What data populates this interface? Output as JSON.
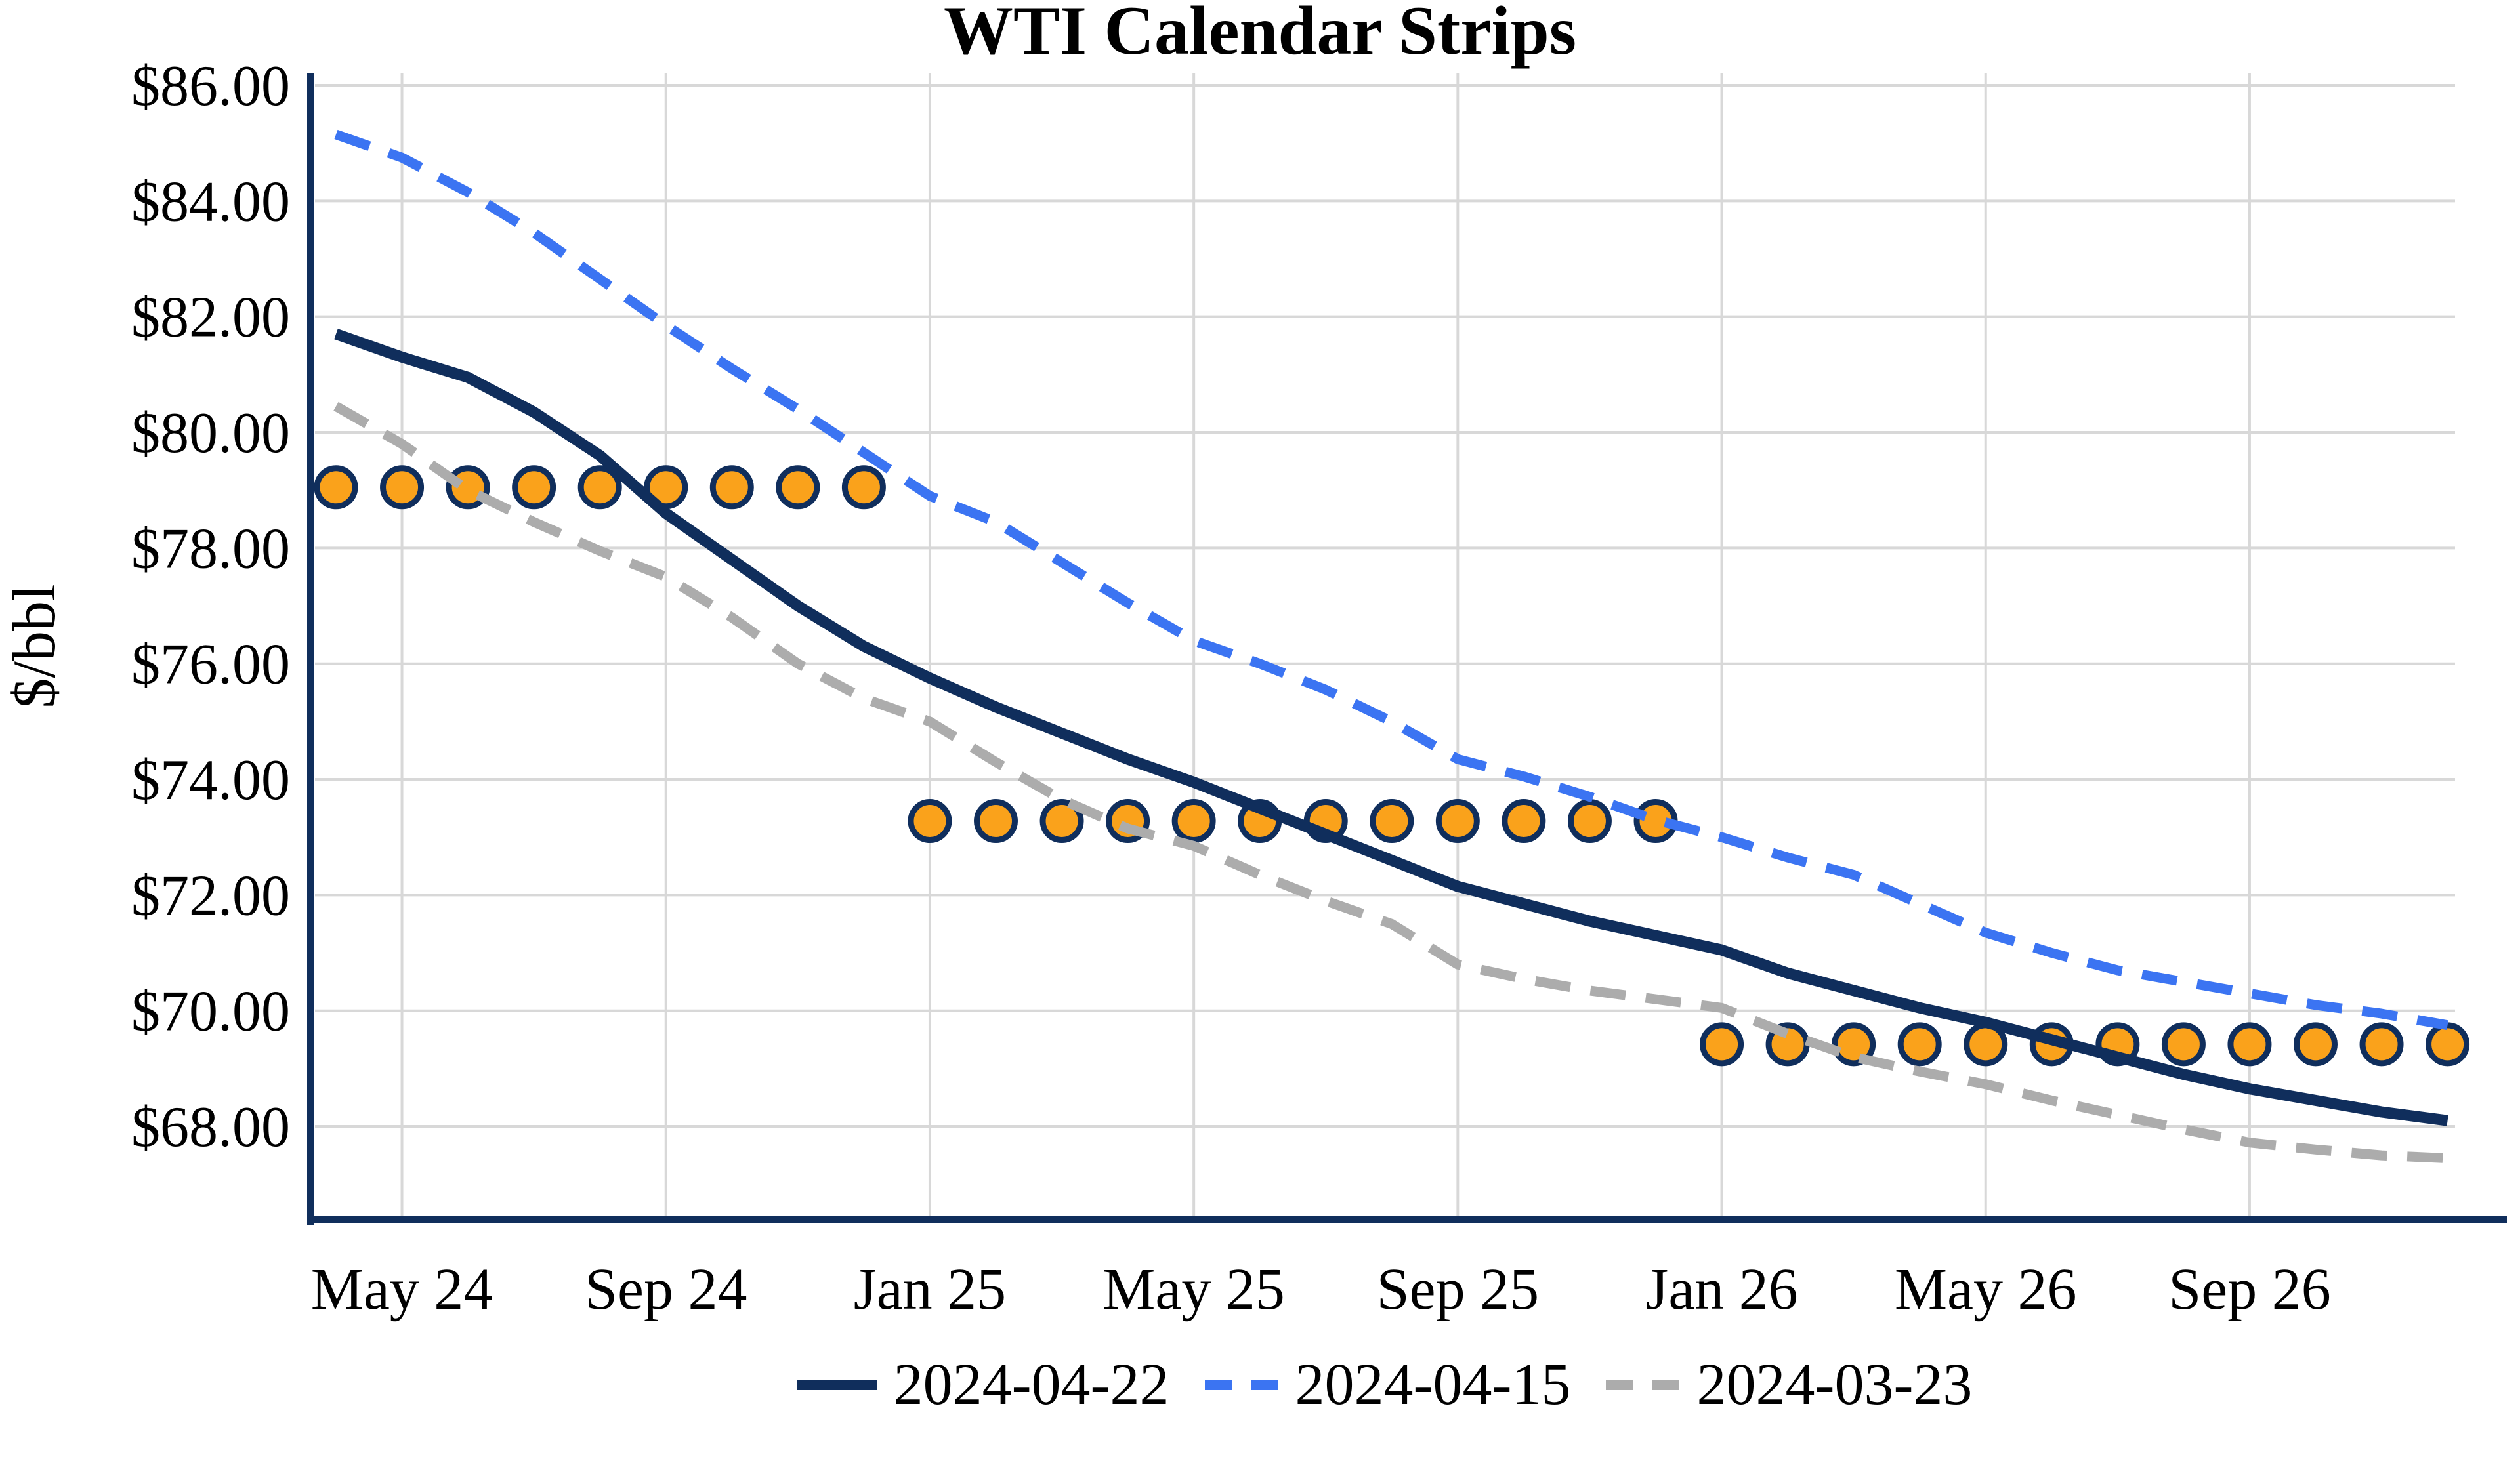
{
  "chart_data": {
    "type": "line",
    "title": "WTI Calendar Strips",
    "ylabel": "$/bbl",
    "grid": true,
    "legend_position": "bottom-center",
    "ylim": [
      66.4,
      86.0
    ],
    "ytick_values": [
      86,
      84,
      82,
      80,
      78,
      76,
      74,
      72,
      70,
      68
    ],
    "ytick_labels": [
      "$86.00",
      "$84.00",
      "$82.00",
      "$80.00",
      "$78.00",
      "$76.00",
      "$74.00",
      "$72.00",
      "$70.00",
      "$68.00"
    ],
    "xtick_labels": [
      "May 24",
      "Sep 24",
      "Jan 25",
      "May 25",
      "Sep 25",
      "Jan 26",
      "May 26",
      "Sep 26"
    ],
    "months": [
      "Apr 24",
      "May 24",
      "Jun 24",
      "Jul 24",
      "Aug 24",
      "Sep 24",
      "Oct 24",
      "Nov 24",
      "Dec 24",
      "Jan 25",
      "Feb 25",
      "Mar 25",
      "Apr 25",
      "May 25",
      "Jun 25",
      "Jul 25",
      "Aug 25",
      "Sep 25",
      "Oct 25",
      "Nov 25",
      "Dec 25",
      "Jan 26",
      "Feb 26",
      "Mar 26",
      "Apr 26",
      "May 26",
      "Jun 26",
      "Jul 26",
      "Aug 26",
      "Sep 26",
      "Oct 26",
      "Nov 26",
      "Dec 26"
    ],
    "series": [
      {
        "name": "2024-04-22",
        "style": "solid",
        "color": "#102E5C",
        "values": [
          81.7,
          81.3,
          80.95,
          80.35,
          79.6,
          78.6,
          77.8,
          77.0,
          76.3,
          75.75,
          75.25,
          74.8,
          74.35,
          73.95,
          73.5,
          73.05,
          72.6,
          72.15,
          71.85,
          71.55,
          71.3,
          71.05,
          70.65,
          70.35,
          70.05,
          69.8,
          69.5,
          69.2,
          68.9,
          68.65,
          68.45,
          68.25,
          68.1
        ]
      },
      {
        "name": "2024-04-15",
        "style": "dashed",
        "color": "#3B74F2",
        "values": [
          85.15,
          84.75,
          84.15,
          83.45,
          82.65,
          81.85,
          81.1,
          80.4,
          79.65,
          78.9,
          78.45,
          77.75,
          77.05,
          76.4,
          76.0,
          75.55,
          75.0,
          74.35,
          74.05,
          73.7,
          73.3,
          73.0,
          72.65,
          72.35,
          71.85,
          71.35,
          71.0,
          70.7,
          70.5,
          70.3,
          70.1,
          69.95,
          69.75
        ]
      },
      {
        "name": "2024-03-23",
        "style": "dashed",
        "color": "#ACACAC",
        "values": [
          80.45,
          79.8,
          79.0,
          78.45,
          77.95,
          77.5,
          76.8,
          76.0,
          75.4,
          75.0,
          74.3,
          73.65,
          73.15,
          72.85,
          72.35,
          71.9,
          71.5,
          70.8,
          70.55,
          70.35,
          70.2,
          70.05,
          69.6,
          69.2,
          68.95,
          68.73,
          68.45,
          68.2,
          67.95,
          67.72,
          67.6,
          67.5,
          67.45
        ]
      }
    ],
    "strips": [
      {
        "name": "2024",
        "value": 79.05,
        "start": "Apr 24",
        "end": "Dec 24"
      },
      {
        "name": "2025",
        "value": 73.28,
        "start": "Jan 25",
        "end": "Dec 25"
      },
      {
        "name": "2026",
        "value": 69.42,
        "start": "Jan 26",
        "end": "Dec 26"
      }
    ],
    "marker_color": "#FAA21B",
    "marker_edge_color": "#102E5C",
    "gridline_color": "#D8D8D8",
    "axis_spine_color": "#102E5C"
  }
}
